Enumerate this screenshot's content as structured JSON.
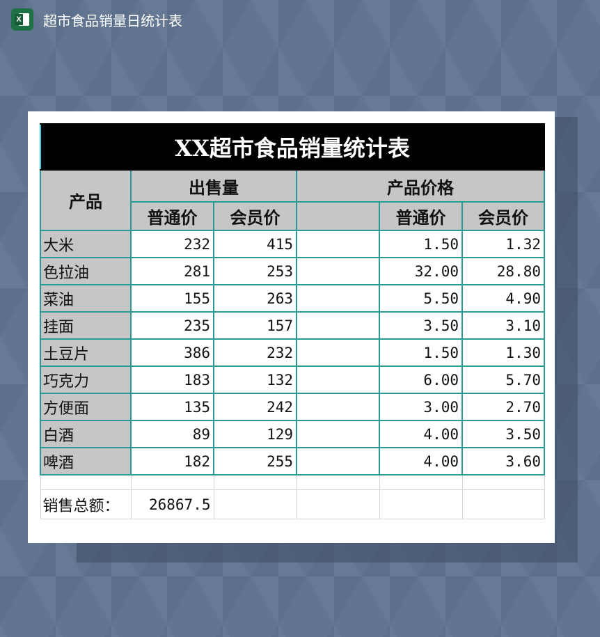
{
  "app": {
    "title": "超市食品销量日统计表",
    "icon": "excel-icon"
  },
  "sheet": {
    "title": "XX超市食品销量统计表",
    "headers": {
      "product": "产品",
      "sales": "出售量",
      "price": "产品价格",
      "regular": "普通价",
      "member": "会员价"
    },
    "rows": [
      {
        "name": "大米",
        "sales_regular": "232",
        "sales_member": "415",
        "price_regular": "1.50",
        "price_member": "1.32"
      },
      {
        "name": "色拉油",
        "sales_regular": "281",
        "sales_member": "253",
        "price_regular": "32.00",
        "price_member": "28.80"
      },
      {
        "name": "菜油",
        "sales_regular": "155",
        "sales_member": "263",
        "price_regular": "5.50",
        "price_member": "4.90"
      },
      {
        "name": "挂面",
        "sales_regular": "235",
        "sales_member": "157",
        "price_regular": "3.50",
        "price_member": "3.10"
      },
      {
        "name": "土豆片",
        "sales_regular": "386",
        "sales_member": "232",
        "price_regular": "1.50",
        "price_member": "1.30"
      },
      {
        "name": "巧克力",
        "sales_regular": "183",
        "sales_member": "132",
        "price_regular": "6.00",
        "price_member": "5.70"
      },
      {
        "name": "方便面",
        "sales_regular": "135",
        "sales_member": "242",
        "price_regular": "3.00",
        "price_member": "2.70"
      },
      {
        "name": "白酒",
        "sales_regular": "89",
        "sales_member": "129",
        "price_regular": "4.00",
        "price_member": "3.50"
      },
      {
        "name": "啤酒",
        "sales_regular": "182",
        "sales_member": "255",
        "price_regular": "4.00",
        "price_member": "3.60"
      }
    ],
    "total": {
      "label": "销售总额：",
      "value": "26867.5"
    }
  }
}
